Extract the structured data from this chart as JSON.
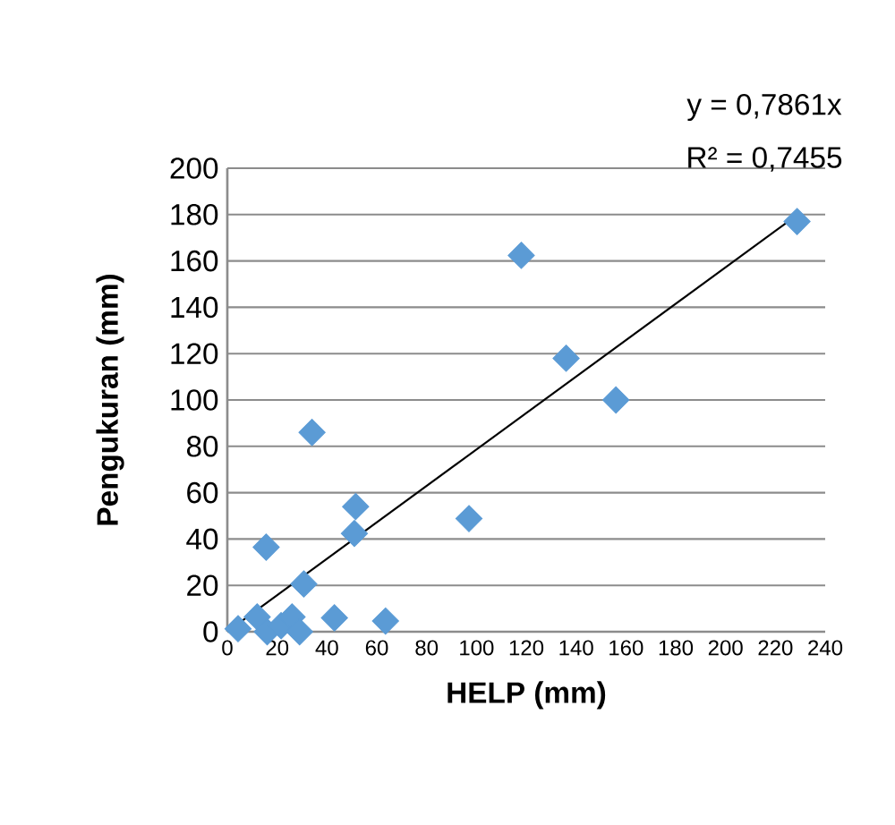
{
  "chart_data": {
    "type": "scatter",
    "xlabel": "HELP (mm)",
    "ylabel": "Pengukuran (mm)",
    "xlim": [
      0,
      240
    ],
    "ylim": [
      0,
      200
    ],
    "xticks": [
      0,
      20,
      40,
      60,
      80,
      100,
      120,
      140,
      160,
      180,
      200,
      220,
      240
    ],
    "yticks": [
      0,
      20,
      40,
      60,
      80,
      100,
      120,
      140,
      160,
      180,
      200
    ],
    "grid": "y",
    "marker": "diamond",
    "annotations": [
      "y = 0,7861x",
      "R² = 0,7455"
    ],
    "series": [
      {
        "color": "#5b9bd5",
        "x": [
          4.3,
          12,
          16,
          21.6,
          26,
          29,
          30.7,
          15.6,
          34,
          43,
          51.5,
          51,
          63.5,
          97,
          118,
          136,
          156,
          228.7
        ],
        "values": [
          1.3,
          6.4,
          0,
          2.6,
          6.4,
          0,
          20.6,
          36.5,
          86,
          6,
          54,
          42.4,
          4.6,
          48.8,
          162.4,
          118,
          100,
          177
        ]
      },
      {
        "type": "line",
        "marker": "none",
        "color": "#000000",
        "x": [
          4.3,
          228.7
        ],
        "values": [
          3.4,
          179.8
        ]
      }
    ]
  }
}
